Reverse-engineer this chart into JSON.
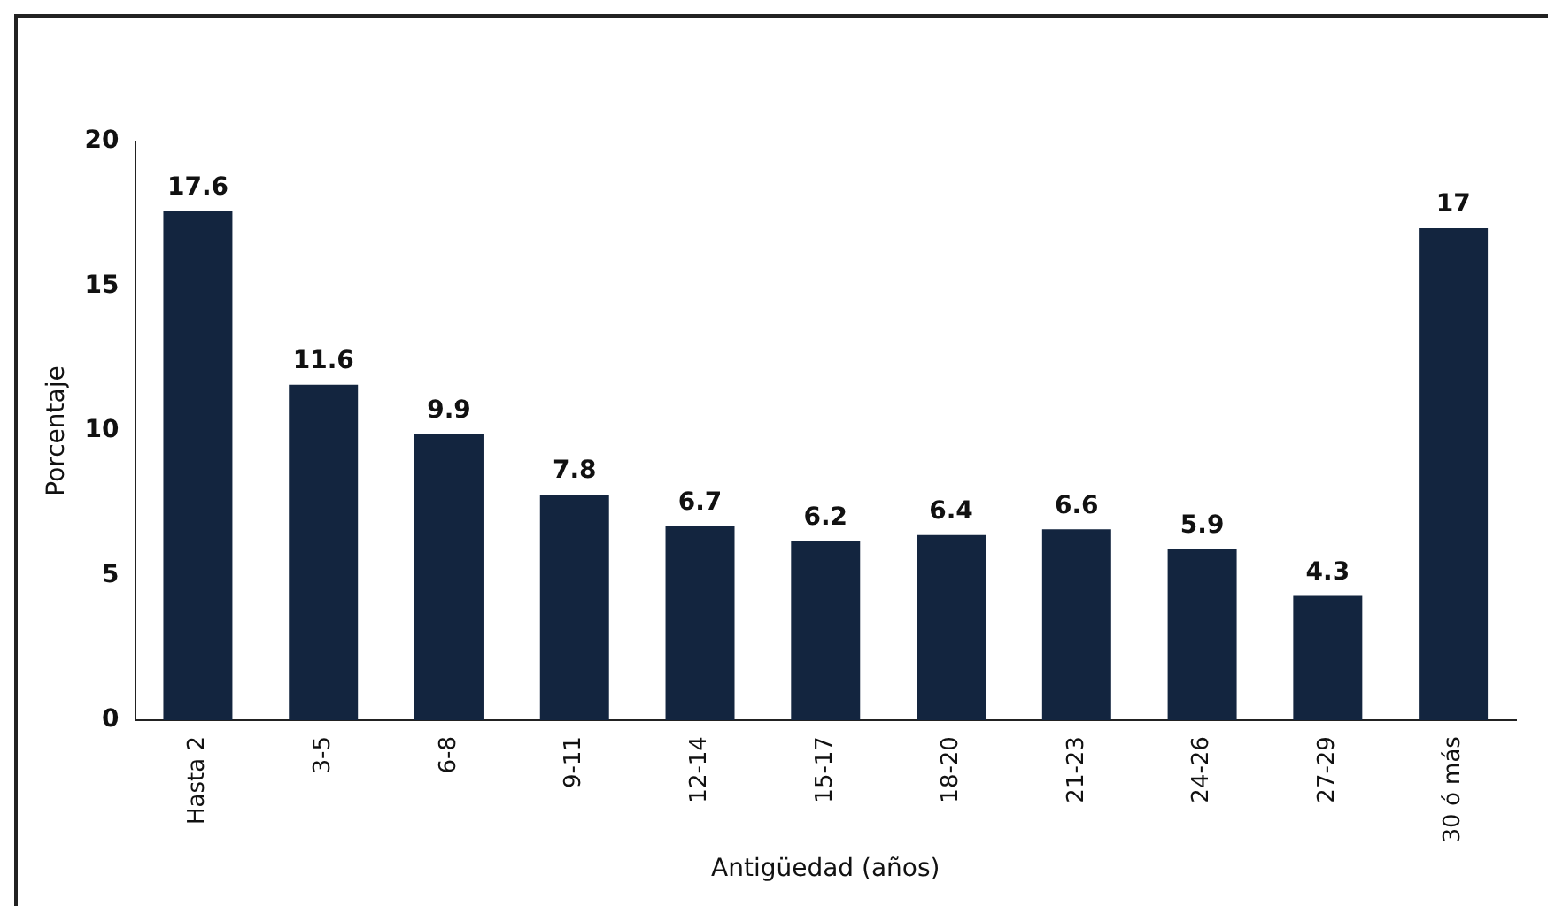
{
  "chart_data": {
    "type": "bar",
    "xlabel": "Antigüedad (años)",
    "ylabel": "Porcentaje",
    "categories": [
      "Hasta 2",
      "3-5",
      "6-8",
      "9-11",
      "12-14",
      "15-17",
      "18-20",
      "21-23",
      "24-26",
      "27-29",
      "30 ó más"
    ],
    "values": [
      17.6,
      11.6,
      9.9,
      7.8,
      6.7,
      6.2,
      6.4,
      6.6,
      5.9,
      4.3,
      17
    ],
    "color": "#13253f",
    "ylim": [
      0,
      20
    ],
    "yticks": [
      0,
      5,
      10,
      15,
      20
    ],
    "grid": false,
    "legend": false,
    "data_labels": true
  }
}
